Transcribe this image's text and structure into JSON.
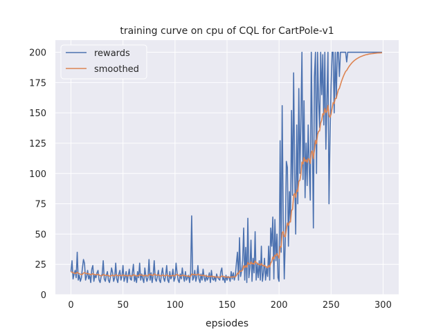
{
  "chart_data": {
    "type": "line",
    "title": "training curve on cpu of CQL for CartPole-v1",
    "xlabel": "epsiodes",
    "ylabel": "",
    "xlim": [
      -15,
      315
    ],
    "ylim": [
      0,
      210
    ],
    "xticks": [
      0,
      50,
      100,
      150,
      200,
      250,
      300
    ],
    "yticks": [
      0,
      25,
      50,
      75,
      100,
      125,
      150,
      175,
      200
    ],
    "grid": true,
    "legend_position": "top-left",
    "background": "#eaeaf2",
    "series": [
      {
        "name": "rewards",
        "color": "#4c72b0",
        "x_start": 0,
        "values": [
          19,
          28,
          13,
          17,
          20,
          14,
          35,
          12,
          16,
          11,
          14,
          22,
          29,
          26,
          12,
          15,
          20,
          13,
          16,
          10,
          21,
          24,
          11,
          16,
          14,
          18,
          20,
          12,
          10,
          15,
          17,
          28,
          13,
          11,
          16,
          19,
          12,
          10,
          15,
          22,
          18,
          11,
          14,
          26,
          13,
          10,
          17,
          20,
          12,
          15,
          24,
          11,
          14,
          19,
          10,
          16,
          21,
          13,
          12,
          18,
          25,
          11,
          15,
          10,
          19,
          14,
          26,
          12,
          17,
          13,
          10,
          22,
          15,
          11,
          14,
          29,
          12,
          18,
          10,
          16,
          28,
          13,
          11,
          15,
          20,
          12,
          10,
          17,
          22,
          14,
          11,
          16,
          24,
          12,
          10,
          19,
          13,
          15,
          21,
          11,
          14,
          26,
          18,
          12,
          10,
          17,
          13,
          22,
          15,
          11,
          19,
          12,
          14,
          16,
          10,
          18,
          65,
          12,
          14,
          20,
          11,
          15,
          24,
          13,
          10,
          17,
          12,
          21,
          14,
          11,
          16,
          12,
          14,
          18,
          10,
          20,
          13,
          12,
          15,
          11,
          17,
          14,
          13,
          12,
          19,
          22,
          12,
          14,
          10,
          16,
          12,
          15,
          14,
          11,
          19,
          13,
          18,
          12,
          16,
          26,
          35,
          12,
          47,
          15,
          20,
          28,
          55,
          12,
          39,
          10,
          63,
          14,
          22,
          45,
          11,
          30,
          18,
          52,
          12,
          25,
          14,
          28,
          12,
          40,
          11,
          18,
          30,
          12,
          22,
          15,
          40,
          12,
          55,
          40,
          64,
          13,
          62,
          28,
          50,
          14,
          11,
          127,
          35,
          156,
          62,
          13,
          45,
          110,
          105,
          40,
          85,
          60,
          152,
          82,
          183,
          100,
          50,
          140,
          75,
          170,
          100,
          145,
          200,
          95,
          160,
          80,
          125,
          90,
          140,
          105,
          78,
          200,
          130,
          55,
          180,
          200,
          100,
          200,
          160,
          138,
          200,
          165,
          198,
          140,
          200,
          120,
          160,
          200,
          75,
          130,
          172,
          200,
          200,
          150,
          200,
          162,
          200,
          200,
          180,
          200,
          200,
          200,
          200,
          200,
          200,
          192,
          200,
          200,
          200,
          200,
          200,
          200,
          200,
          200,
          200,
          200,
          200,
          200,
          200,
          200,
          200,
          200,
          200,
          200,
          200,
          200,
          200,
          200,
          200,
          200,
          200,
          200,
          200,
          200,
          200,
          200,
          200,
          200,
          200,
          200
        ]
      },
      {
        "name": "smoothed",
        "color": "#dd8452",
        "x_start": 0,
        "values": [
          19,
          18.5,
          18,
          17.8,
          17.6,
          17.5,
          18.5,
          17.8,
          17.3,
          16.9,
          16.6,
          16.8,
          17.8,
          18.2,
          17.6,
          17.3,
          17.5,
          17.1,
          17,
          16.4,
          16.8,
          17.4,
          16.7,
          16.6,
          16.4,
          16.5,
          16.8,
          16.3,
          15.7,
          15.6,
          15.7,
          16.7,
          16.4,
          15.9,
          15.9,
          16.1,
          15.8,
          15.2,
          15.2,
          15.9,
          16.1,
          15.6,
          15.5,
          16.5,
          16.1,
          15.5,
          15.7,
          16.1,
          15.7,
          15.6,
          16.4,
          15.9,
          15.7,
          16,
          15.4,
          15.5,
          16,
          15.7,
          15.3,
          15.6,
          16.5,
          16,
          15.9,
          15.3,
          15.7,
          15.5,
          16.6,
          16.1,
          16.2,
          15.9,
          15.3,
          16,
          16,
          15.5,
          15.4,
          16.8,
          16.3,
          16.5,
          15.9,
          15.9,
          17.1,
          16.7,
          16.1,
          16,
          16.4,
          16,
          15.4,
          15.6,
          16.2,
          16,
          15.5,
          15.5,
          16.4,
          15.9,
          15.3,
          15.7,
          15.5,
          15.5,
          16.1,
          15.6,
          15.4,
          16.5,
          16.7,
          16.2,
          15.6,
          15.7,
          15.4,
          16.1,
          16,
          15.5,
          15.8,
          15.4,
          15.3,
          15.4,
          14.9,
          15.2,
          17,
          16.7,
          16.5,
          16.8,
          16.3,
          16.2,
          17,
          16.6,
          16,
          16,
          15.6,
          16.1,
          15.9,
          15.4,
          15.5,
          15.1,
          15,
          15.3,
          14.8,
          15.3,
          15.1,
          14.8,
          14.8,
          14.4,
          14.7,
          14.6,
          14.5,
          14.3,
          14.7,
          15.4,
          15.1,
          15,
          14.5,
          14.7,
          14.4,
          14.5,
          14.5,
          14.2,
          14.7,
          14.5,
          14.8,
          14.5,
          14.7,
          15.8,
          17.7,
          17.1,
          19.6,
          19.2,
          19.5,
          20.5,
          23.9,
          22.3,
          24,
          22.6,
          26.6,
          25.3,
          25,
          27,
          25.4,
          25.9,
          25.1,
          27.8,
          26.2,
          26.1,
          24.9,
          25.2,
          24.2,
          25.7,
          24.3,
          23.7,
          24.3,
          23.1,
          23,
          22.2,
          24,
          22.8,
          26,
          27.4,
          31.1,
          29.3,
          32.6,
          32.1,
          33.9,
          32,
          30,
          39.7,
          39.3,
          51,
          52.1,
          48.1,
          47.8,
          54,
          59.1,
          57.2,
          60,
          60,
          69.3,
          70.6,
          81.8,
          83.6,
          80.2,
          86.2,
          85.1,
          93.6,
          94.2,
          99.3,
          109.4,
          107.9,
          113.1,
          109.8,
          111.3,
          109.2,
          112.3,
          111.6,
          108.2,
          117.4,
          118.7,
          112.3,
          119.1,
          127.2,
          124.5,
          132,
          134.8,
          135.1,
          141.6,
          143.9,
          149.3,
          148.4,
          153.6,
          150.2,
          151.2,
          156.1,
          148,
          146.2,
          148.8,
          153.9,
          158.5,
          157.6,
          161.9,
          161.9,
          165.7,
          169.1,
          170.2,
          173.2,
          175.9,
          178.3,
          180.5,
          182.4,
          184.2,
          185,
          186.5,
          187.9,
          189.1,
          190.2,
          191.2,
          192.1,
          192.9,
          193.6,
          194.2,
          194.8,
          195.3,
          195.8,
          196.2,
          196.6,
          196.9,
          197.2,
          197.5,
          197.8,
          198,
          198.2,
          198.4,
          198.6,
          198.7,
          198.8,
          198.9,
          199,
          199.1,
          199.2,
          199.3,
          199.4,
          199.4,
          199.5,
          199.5,
          199.6
        ]
      }
    ]
  }
}
